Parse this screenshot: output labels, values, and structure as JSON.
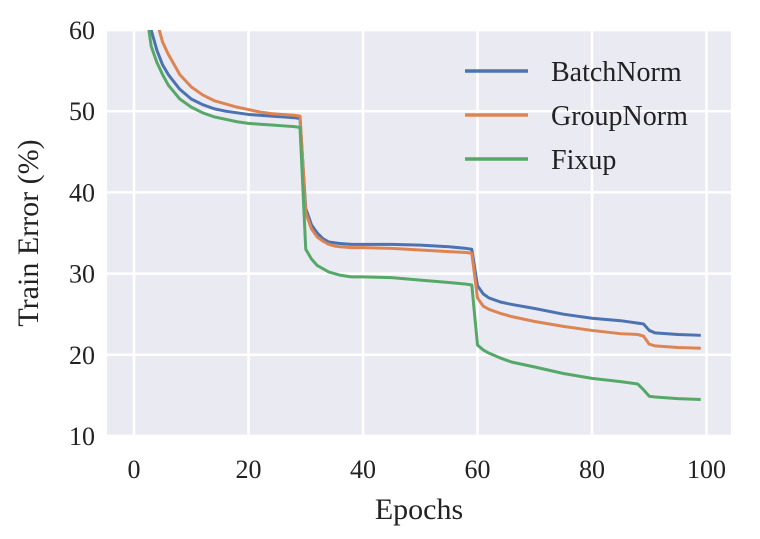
{
  "chart_data": {
    "type": "line",
    "title": "",
    "xlabel": "Epochs",
    "ylabel": "Train Error (%)",
    "xlim": [
      -5,
      104
    ],
    "ylim": [
      10,
      60
    ],
    "xticks": [
      "0",
      "20",
      "40",
      "60",
      "80",
      "100"
    ],
    "yticks": [
      "10",
      "20",
      "30",
      "40",
      "50",
      "60"
    ],
    "grid": true,
    "legend_position": "upper right",
    "x": [
      2,
      3,
      4,
      5,
      6,
      8,
      10,
      12,
      14,
      16,
      18,
      20,
      22,
      24,
      26,
      28,
      29,
      30,
      31,
      32,
      33,
      34,
      35,
      36,
      38,
      40,
      45,
      50,
      55,
      58,
      59,
      60,
      61,
      62,
      64,
      66,
      70,
      75,
      80,
      85,
      88,
      89,
      90,
      91,
      95,
      99
    ],
    "series": [
      {
        "name": "BatchNorm",
        "color": "#4c72b0",
        "values": [
          64,
          60,
          57.5,
          55.7,
          54.5,
          52.7,
          51.5,
          50.8,
          50.3,
          50,
          49.8,
          49.6,
          49.5,
          49.4,
          49.3,
          49.2,
          49.1,
          38,
          36,
          35,
          34.3,
          33.9,
          33.8,
          33.7,
          33.6,
          33.6,
          33.6,
          33.5,
          33.3,
          33.1,
          33,
          28.5,
          27.5,
          27,
          26.5,
          26.2,
          25.7,
          25,
          24.5,
          24.2,
          23.9,
          23.8,
          23,
          22.7,
          22.5,
          22.4
        ]
      },
      {
        "name": "GroupNorm",
        "color": "#dd8452",
        "values": [
          68,
          64,
          61,
          58.5,
          57,
          54.5,
          53,
          52,
          51.3,
          50.9,
          50.5,
          50.2,
          49.9,
          49.7,
          49.6,
          49.5,
          49.4,
          37.5,
          35.5,
          34.5,
          34,
          33.6,
          33.4,
          33.3,
          33.2,
          33.2,
          33.1,
          32.9,
          32.7,
          32.6,
          32.5,
          27,
          26,
          25.6,
          25.1,
          24.7,
          24.1,
          23.5,
          23,
          22.6,
          22.5,
          22.3,
          21.3,
          21.1,
          20.9,
          20.8
        ]
      },
      {
        "name": "Fixup",
        "color": "#55a868",
        "values": [
          63,
          58,
          56,
          54.5,
          53.2,
          51.5,
          50.5,
          49.8,
          49.3,
          49,
          48.7,
          48.5,
          48.4,
          48.3,
          48.2,
          48.1,
          48,
          33,
          31.8,
          31,
          30.6,
          30.2,
          30,
          29.8,
          29.6,
          29.6,
          29.5,
          29.2,
          28.9,
          28.7,
          28.6,
          21.2,
          20.6,
          20.2,
          19.6,
          19.1,
          18.5,
          17.7,
          17.1,
          16.7,
          16.4,
          15.7,
          14.9,
          14.8,
          14.6,
          14.5
        ]
      }
    ]
  }
}
